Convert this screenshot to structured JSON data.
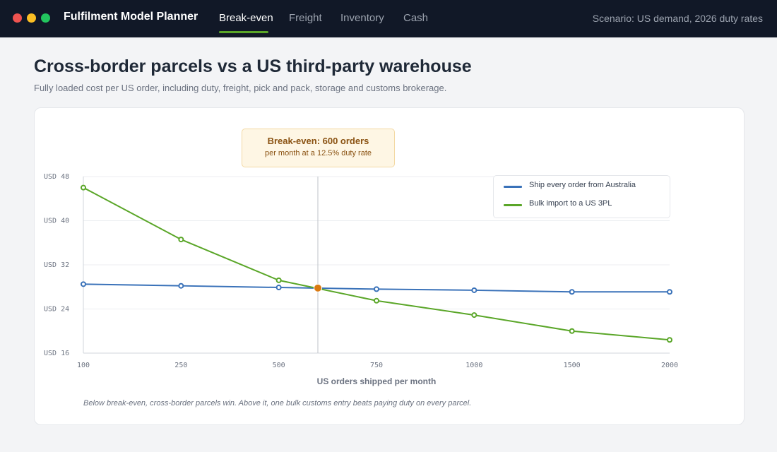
{
  "window": {
    "controls": [
      {
        "name": "close",
        "color": "#ef5350"
      },
      {
        "name": "minimize",
        "color": "#fbbf24"
      },
      {
        "name": "maximize",
        "color": "#22c55e"
      }
    ]
  },
  "app": {
    "title": "Fulfilment Model Planner"
  },
  "nav": {
    "tabs": [
      {
        "label": "Break-even",
        "active": true
      },
      {
        "label": "Freight",
        "active": false
      },
      {
        "label": "Inventory",
        "active": false
      },
      {
        "label": "Cash",
        "active": false
      }
    ]
  },
  "scenario": "Scenario: US demand, 2026 duty rates",
  "page": {
    "title": "Cross-border parcels vs a US third-party warehouse",
    "subtitle": "Fully loaded cost per US order, including duty, freight, pick and pack, storage and customs brokerage."
  },
  "callout": {
    "title": "Break-even: 600 orders",
    "subtitle": "per month at a 12.5% duty rate"
  },
  "footnote": "Below break-even, cross-border parcels win. Above it, one bulk customs entry beats paying duty on every parcel.",
  "chart_data": {
    "type": "line",
    "xlabel": "US orders shipped per month",
    "ylabel": "",
    "categories": [
      "100",
      "250",
      "500",
      "750",
      "1000",
      "1500",
      "2000"
    ],
    "y_ticks": [
      "USD 16",
      "USD 24",
      "USD 32",
      "USD 40",
      "USD 48"
    ],
    "ylim": [
      16,
      48
    ],
    "grid": true,
    "legend_position": "top-right",
    "series": [
      {
        "name": "Ship every order from Australia",
        "color": "#3a72b9",
        "values": [
          28.5,
          28.2,
          27.9,
          27.6,
          27.4,
          27.1,
          27.1
        ]
      },
      {
        "name": "Bulk import to a US 3PL",
        "color": "#5aa628",
        "values": [
          46.0,
          36.6,
          29.2,
          25.5,
          22.9,
          20.0,
          18.4
        ]
      }
    ],
    "break_even": {
      "x": 600,
      "y": 27.8,
      "color": "#d97a12"
    }
  }
}
